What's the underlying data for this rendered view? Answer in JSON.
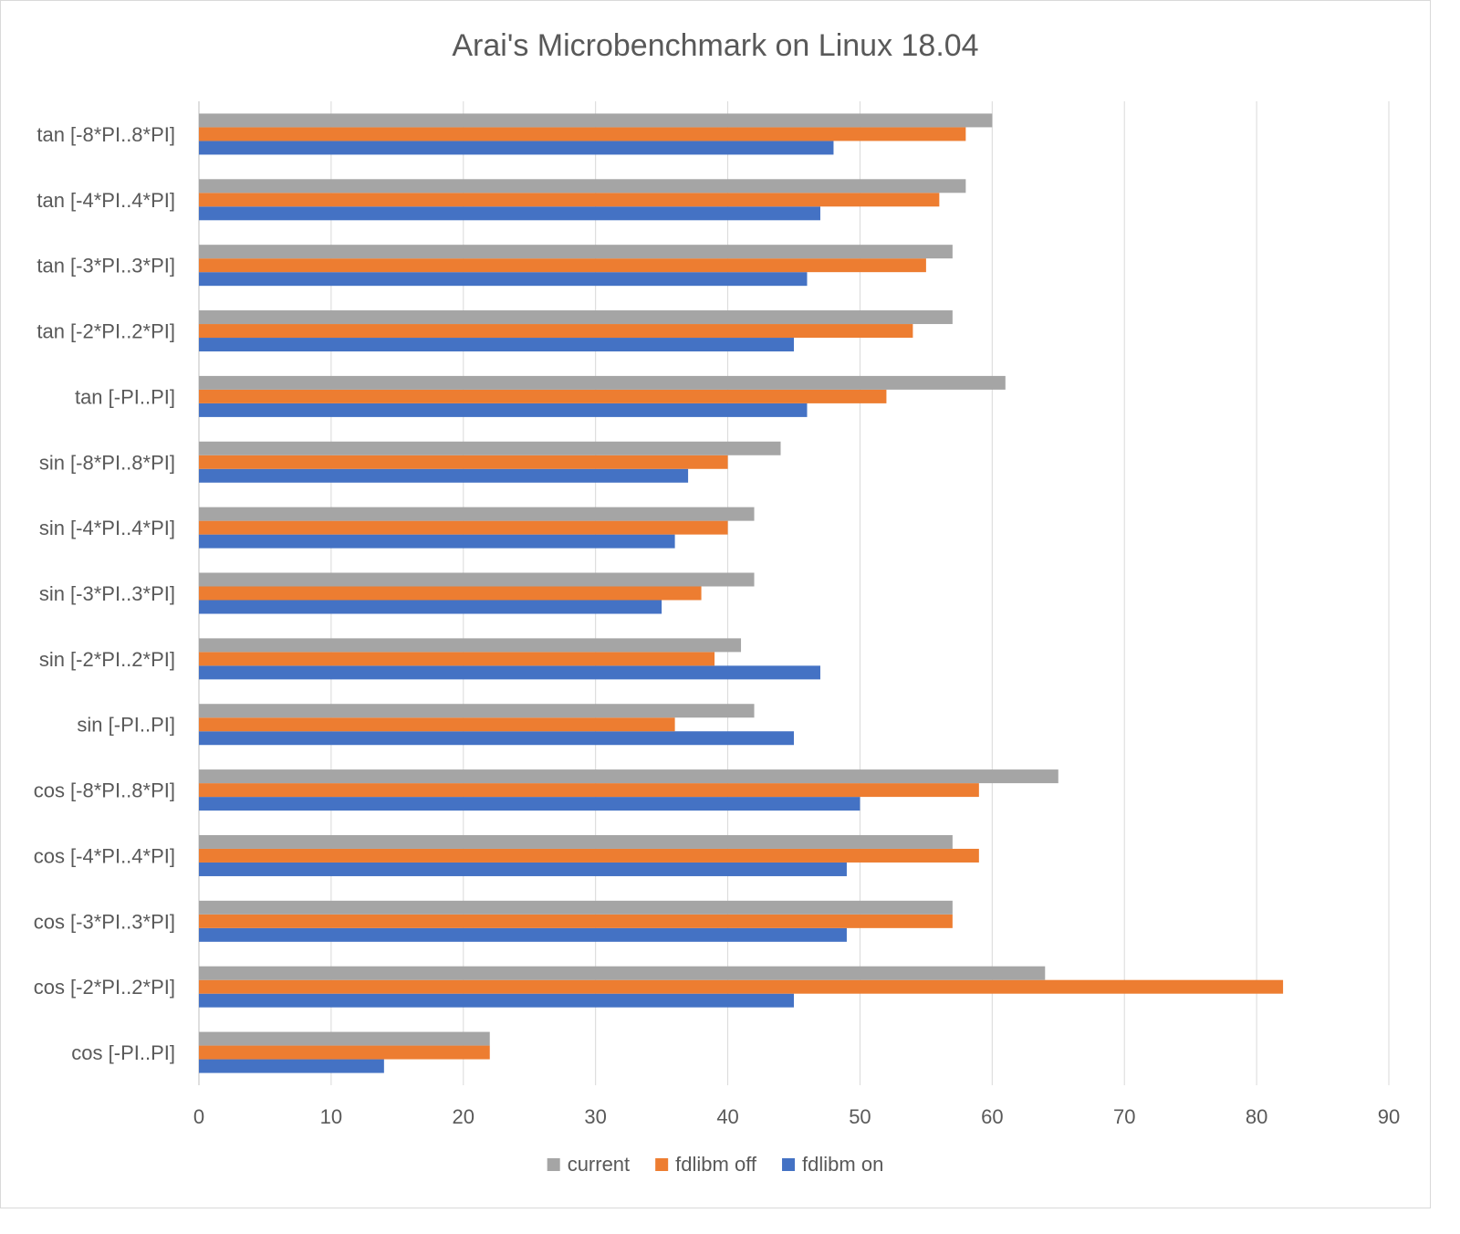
{
  "chart_data": {
    "type": "bar",
    "orientation": "horizontal",
    "title": "Arai's Microbenchmark on Linux 18.04",
    "xlabel": "",
    "ylabel": "",
    "xlim": [
      0,
      90
    ],
    "xticks": [
      0,
      10,
      20,
      30,
      40,
      50,
      60,
      70,
      80,
      90
    ],
    "grid": true,
    "legend_position": "bottom",
    "categories": [
      "cos [-PI..PI]",
      "cos [-2*PI..2*PI]",
      "cos [-3*PI..3*PI]",
      "cos [-4*PI..4*PI]",
      "cos [-8*PI..8*PI]",
      "sin [-PI..PI]",
      "sin [-2*PI..2*PI]",
      "sin [-3*PI..3*PI]",
      "sin [-4*PI..4*PI]",
      "sin [-8*PI..8*PI]",
      "tan [-PI..PI]",
      "tan [-2*PI..2*PI]",
      "tan [-3*PI..3*PI]",
      "tan [-4*PI..4*PI]",
      "tan [-8*PI..8*PI]"
    ],
    "series": [
      {
        "name": "fdlibm on",
        "color": "#4472C4",
        "values": [
          14,
          45,
          49,
          49,
          50,
          45,
          47,
          35,
          36,
          37,
          46,
          45,
          46,
          47,
          48
        ]
      },
      {
        "name": "fdlibm off",
        "color": "#ED7D31",
        "values": [
          22,
          82,
          57,
          59,
          59,
          36,
          39,
          38,
          40,
          40,
          52,
          54,
          55,
          56,
          58
        ]
      },
      {
        "name": "current",
        "color": "#A5A5A5",
        "values": [
          22,
          64,
          57,
          57,
          65,
          42,
          41,
          42,
          42,
          44,
          61,
          57,
          57,
          58,
          60
        ]
      }
    ],
    "legend_order": [
      "current",
      "fdlibm off",
      "fdlibm on"
    ]
  },
  "colors": {
    "gridline": "#d9d9d9",
    "axis": "#bfbfbf",
    "text": "#595959"
  }
}
